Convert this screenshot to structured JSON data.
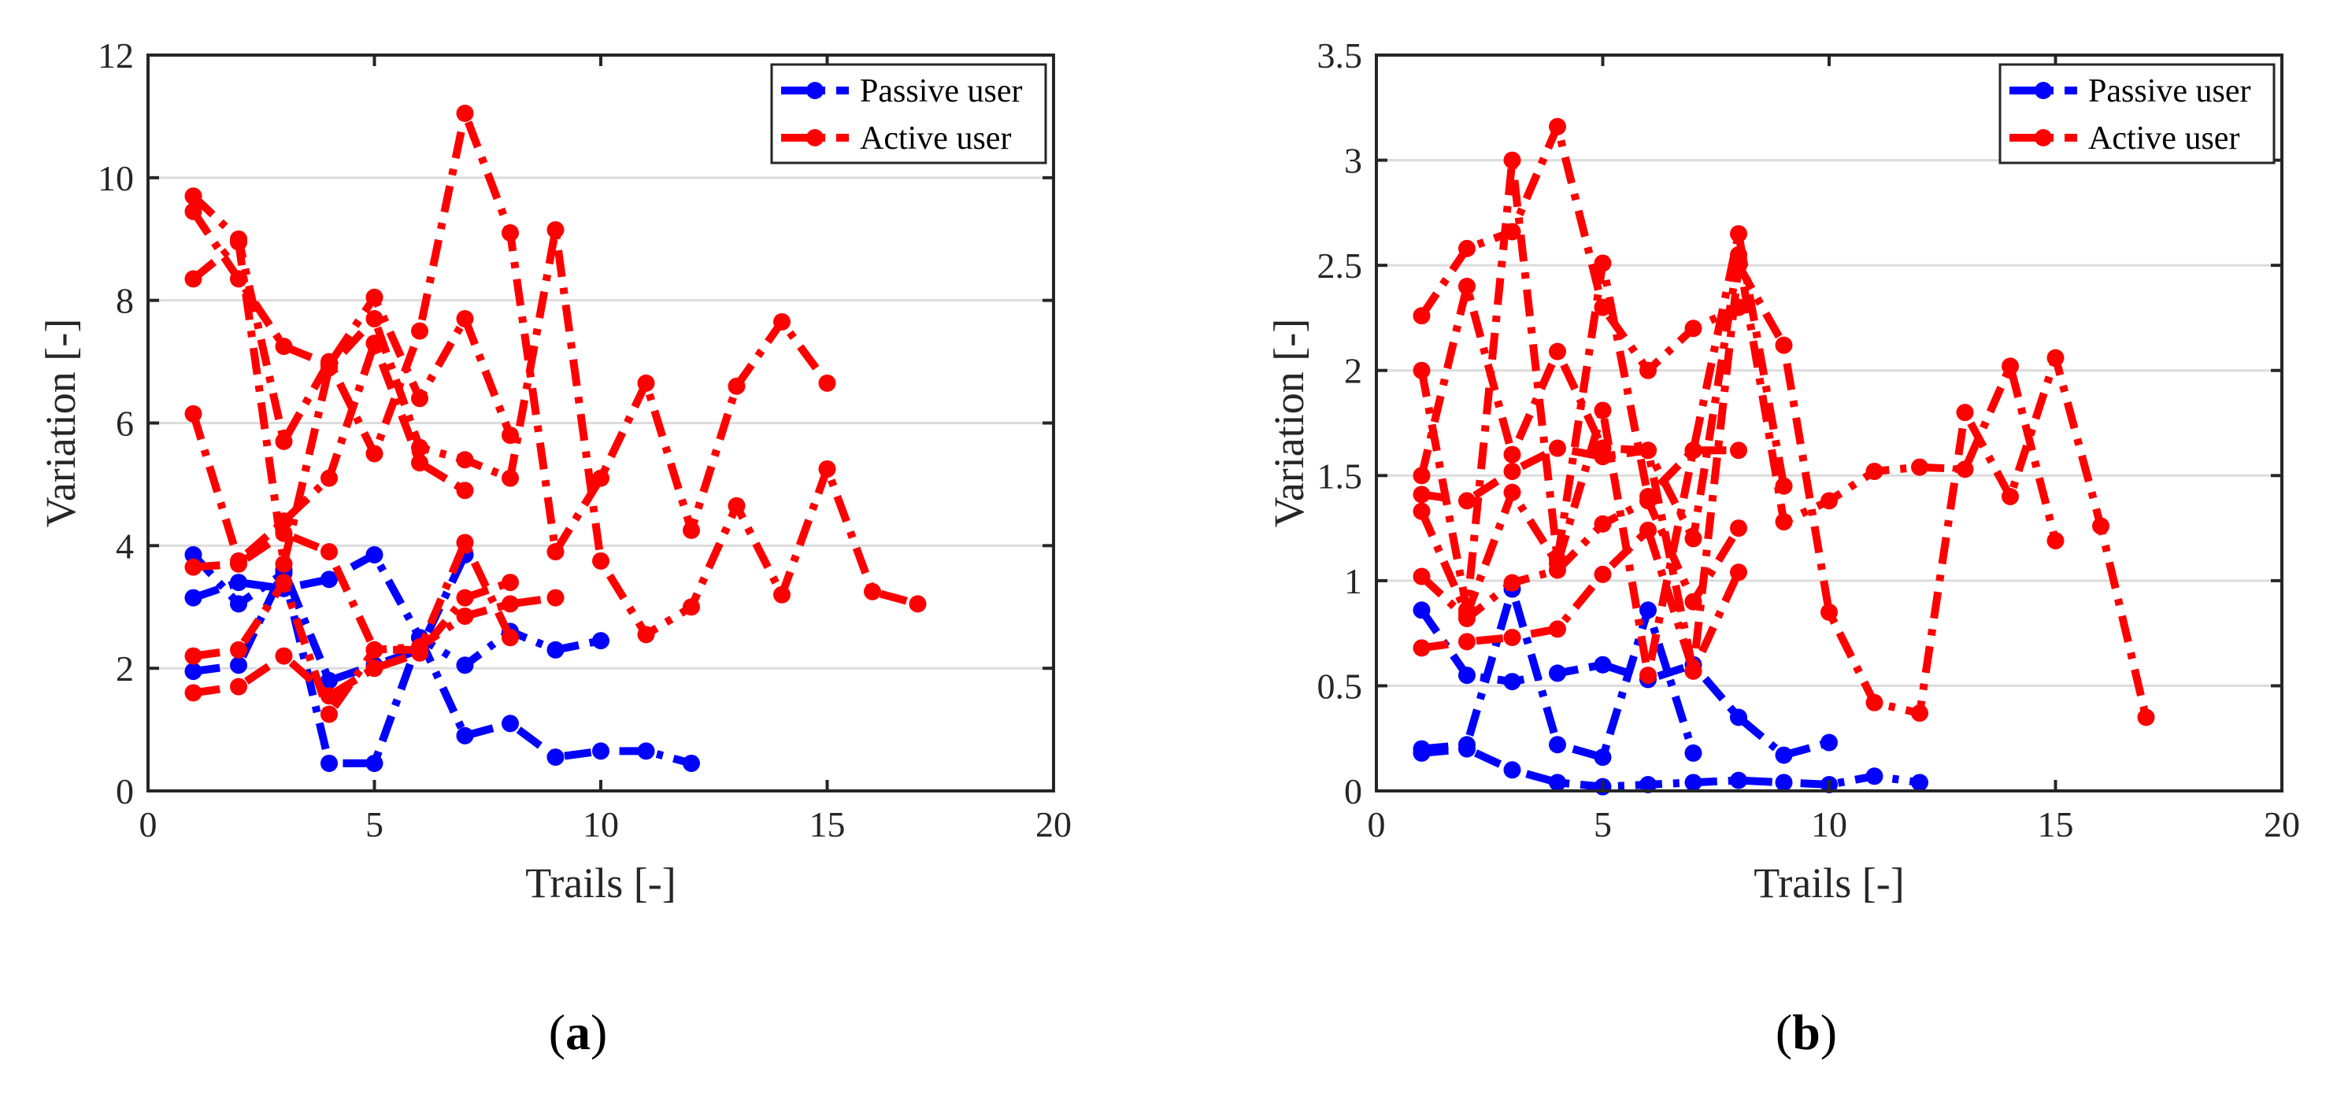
{
  "chart_data": [
    {
      "type": "line",
      "panel_label": "a",
      "xlabel": "Trails [-]",
      "ylabel": "Variation [-]",
      "xlim": [
        0,
        20
      ],
      "ylim": [
        0,
        12
      ],
      "xticks": [
        0,
        5,
        10,
        15,
        20
      ],
      "yticks": [
        0,
        2,
        4,
        6,
        8,
        10,
        12
      ],
      "grid": "horizontal",
      "legend": [
        {
          "name": "Passive user",
          "color": "#0000ff"
        },
        {
          "name": "Active user",
          "color": "#ff0000"
        }
      ],
      "legend_position": "top-right",
      "series": [
        {
          "group": "Passive user",
          "color": "#0000ff",
          "x": [
            1,
            2,
            3,
            4,
            5,
            6,
            7,
            8,
            9,
            10
          ],
          "y": [
            3.15,
            3.4,
            3.3,
            3.45,
            3.85,
            2.5,
            2.05,
            2.6,
            2.3,
            2.45
          ]
        },
        {
          "group": "Passive user",
          "color": "#0000ff",
          "x": [
            1,
            2,
            3,
            4,
            5,
            6,
            7,
            8,
            9,
            10,
            11,
            12
          ],
          "y": [
            3.85,
            3.05,
            3.55,
            0.45,
            0.45,
            2.5,
            0.9,
            1.1,
            0.55,
            0.65,
            0.65,
            0.45
          ]
        },
        {
          "group": "Passive user",
          "color": "#0000ff",
          "x": [
            1,
            2,
            3,
            4,
            5,
            6,
            7
          ],
          "y": [
            1.95,
            2.05,
            3.6,
            1.8,
            2.05,
            2.3,
            3.85
          ]
        },
        {
          "group": "Active user",
          "color": "#ff0000",
          "x": [
            1,
            2,
            3,
            4,
            5,
            6,
            7,
            8,
            9,
            10,
            11,
            12,
            13,
            14,
            15
          ],
          "y": [
            9.7,
            9.0,
            5.7,
            7.0,
            5.5,
            7.5,
            11.05,
            9.1,
            3.9,
            5.1,
            6.65,
            4.25,
            6.6,
            7.65,
            6.65
          ]
        },
        {
          "group": "Active user",
          "color": "#ff0000",
          "x": [
            1,
            2,
            3,
            4,
            5,
            6,
            7,
            8
          ],
          "y": [
            9.45,
            8.35,
            7.25,
            6.95,
            8.05,
            6.4,
            7.7,
            5.8
          ]
        },
        {
          "group": "Active user",
          "color": "#ff0000",
          "x": [
            1,
            2,
            3,
            4,
            5,
            6,
            7,
            8,
            9,
            10,
            11,
            12,
            13,
            14,
            15,
            16,
            17
          ],
          "y": [
            8.35,
            8.95,
            3.7,
            6.9,
            7.7,
            5.6,
            5.4,
            5.1,
            9.15,
            3.75,
            2.55,
            3.0,
            4.65,
            3.2,
            5.25,
            3.25,
            3.05
          ]
        },
        {
          "group": "Active user",
          "color": "#ff0000",
          "x": [
            1,
            2,
            3,
            4,
            5,
            6,
            7
          ],
          "y": [
            6.15,
            3.75,
            4.4,
            5.1,
            7.3,
            5.35,
            4.9
          ]
        },
        {
          "group": "Active user",
          "color": "#ff0000",
          "x": [
            1,
            2,
            3,
            4,
            5,
            6,
            7,
            8
          ],
          "y": [
            3.65,
            3.7,
            4.2,
            3.9,
            2.3,
            2.3,
            4.05,
            2.5
          ]
        },
        {
          "group": "Active user",
          "color": "#ff0000",
          "x": [
            1,
            2,
            3,
            4,
            5,
            6,
            7,
            8,
            9
          ],
          "y": [
            2.2,
            2.3,
            3.4,
            1.25,
            2.3,
            2.35,
            2.85,
            3.05,
            3.15
          ]
        },
        {
          "group": "Active user",
          "color": "#ff0000",
          "x": [
            1,
            2,
            3,
            4,
            5,
            6,
            7,
            8
          ],
          "y": [
            1.6,
            1.7,
            2.2,
            1.55,
            2.0,
            2.25,
            3.15,
            3.4
          ]
        }
      ]
    },
    {
      "type": "line",
      "panel_label": "b",
      "xlabel": "Trails [-]",
      "ylabel": "Variation [-]",
      "xlim": [
        0,
        20
      ],
      "ylim": [
        0,
        3.5
      ],
      "xticks": [
        0,
        5,
        10,
        15,
        20
      ],
      "yticks": [
        0,
        0.5,
        1,
        1.5,
        2,
        2.5,
        3,
        3.5
      ],
      "grid": "horizontal",
      "legend": [
        {
          "name": "Passive user",
          "color": "#0000ff"
        },
        {
          "name": "Active user",
          "color": "#ff0000"
        }
      ],
      "legend_position": "top-right",
      "series": [
        {
          "group": "Passive user",
          "color": "#0000ff",
          "x": [
            1,
            2,
            3,
            4,
            5,
            6,
            7,
            8,
            9,
            10
          ],
          "y": [
            0.86,
            0.55,
            0.52,
            0.56,
            0.6,
            0.53,
            0.6,
            0.35,
            0.17,
            0.23
          ]
        },
        {
          "group": "Passive user",
          "color": "#0000ff",
          "x": [
            1,
            2,
            3,
            4,
            5,
            6,
            7
          ],
          "y": [
            0.2,
            0.22,
            0.96,
            0.22,
            0.16,
            0.86,
            0.18
          ]
        },
        {
          "group": "Passive user",
          "color": "#0000ff",
          "x": [
            1,
            2,
            3,
            4,
            5,
            6,
            7,
            8,
            9,
            10,
            11,
            12
          ],
          "y": [
            0.18,
            0.2,
            0.1,
            0.04,
            0.02,
            0.03,
            0.04,
            0.05,
            0.04,
            0.03,
            0.07,
            0.04
          ]
        },
        {
          "group": "Active user",
          "color": "#ff0000",
          "x": [
            1,
            2,
            3,
            4,
            5,
            6,
            7,
            8
          ],
          "y": [
            2.26,
            2.58,
            2.66,
            3.16,
            2.3,
            2.0,
            2.2,
            2.3
          ]
        },
        {
          "group": "Active user",
          "color": "#ff0000",
          "x": [
            1,
            2,
            3,
            4,
            5,
            6,
            7,
            8,
            9
          ],
          "y": [
            2.0,
            0.86,
            3.0,
            1.1,
            2.51,
            1.4,
            1.62,
            2.65,
            1.45
          ]
        },
        {
          "group": "Active user",
          "color": "#ff0000",
          "x": [
            1,
            2,
            3,
            4,
            5,
            6,
            7,
            8,
            9,
            10,
            11,
            12,
            13,
            14,
            15,
            16,
            17
          ],
          "y": [
            1.5,
            2.4,
            1.6,
            2.09,
            1.63,
            1.62,
            0.57,
            2.5,
            2.12,
            0.85,
            0.42,
            0.37,
            1.8,
            1.4,
            2.06,
            1.26,
            0.35
          ]
        },
        {
          "group": "Active user",
          "color": "#ff0000",
          "x": [
            1,
            2,
            3,
            4,
            5,
            6,
            7,
            8,
            9,
            10,
            11,
            12,
            13,
            14,
            15
          ],
          "y": [
            1.41,
            1.38,
            1.52,
            1.63,
            1.59,
            1.62,
            1.2,
            2.55,
            1.28,
            1.38,
            1.52,
            1.54,
            1.53,
            2.02,
            1.19
          ]
        },
        {
          "group": "Active user",
          "color": "#ff0000",
          "x": [
            1,
            2,
            3,
            4,
            5,
            6,
            7,
            8
          ],
          "y": [
            1.33,
            0.84,
            1.42,
            1.08,
            1.81,
            0.55,
            1.62,
            1.62
          ]
        },
        {
          "group": "Active user",
          "color": "#ff0000",
          "x": [
            1,
            2,
            3,
            4,
            5,
            6,
            7,
            8
          ],
          "y": [
            1.02,
            0.82,
            0.99,
            1.05,
            1.27,
            1.38,
            0.9,
            1.25
          ]
        },
        {
          "group": "Active user",
          "color": "#ff0000",
          "x": [
            1,
            2,
            3,
            4,
            5,
            6,
            7,
            8
          ],
          "y": [
            0.68,
            0.71,
            0.73,
            0.77,
            1.03,
            1.24,
            0.57,
            1.04
          ]
        }
      ]
    }
  ]
}
